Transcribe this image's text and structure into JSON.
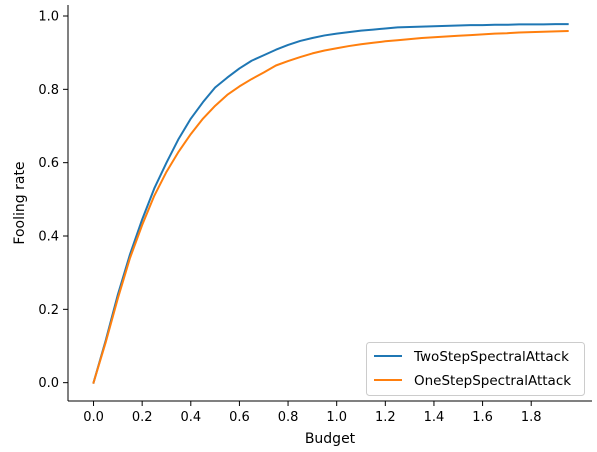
{
  "chart_data": {
    "type": "line",
    "title": "",
    "xlabel": "Budget",
    "ylabel": "Fooling rate",
    "xlim": [
      -0.105,
      2.05
    ],
    "ylim": [
      -0.05,
      1.03
    ],
    "xticks": [
      0.0,
      0.2,
      0.4,
      0.6,
      0.8,
      1.0,
      1.2,
      1.4,
      1.6,
      1.8
    ],
    "xtick_labels": [
      "0.0",
      "0.2",
      "0.4",
      "0.6",
      "0.8",
      "1.0",
      "1.2",
      "1.4",
      "1.6",
      "1.8"
    ],
    "yticks": [
      0.0,
      0.2,
      0.4,
      0.6,
      0.8,
      1.0
    ],
    "ytick_labels": [
      "0.0",
      "0.2",
      "0.4",
      "0.6",
      "0.8",
      "1.0"
    ],
    "grid": false,
    "legend_position": "bottom-right",
    "series": [
      {
        "name": "TwoStepSpectralAttack",
        "color": "#1f77b4",
        "x": [
          0.0,
          0.05,
          0.1,
          0.15,
          0.2,
          0.25,
          0.3,
          0.35,
          0.4,
          0.45,
          0.5,
          0.55,
          0.6,
          0.65,
          0.7,
          0.75,
          0.8,
          0.85,
          0.9,
          0.95,
          1.0,
          1.05,
          1.1,
          1.15,
          1.2,
          1.25,
          1.3,
          1.35,
          1.4,
          1.45,
          1.5,
          1.55,
          1.6,
          1.65,
          1.7,
          1.75,
          1.8,
          1.85,
          1.9,
          1.95
        ],
        "y": [
          0.0,
          0.115,
          0.24,
          0.35,
          0.445,
          0.53,
          0.6,
          0.665,
          0.72,
          0.765,
          0.805,
          0.832,
          0.857,
          0.878,
          0.893,
          0.908,
          0.921,
          0.932,
          0.94,
          0.947,
          0.952,
          0.956,
          0.96,
          0.963,
          0.966,
          0.969,
          0.97,
          0.971,
          0.972,
          0.973,
          0.974,
          0.975,
          0.975,
          0.976,
          0.976,
          0.977,
          0.977,
          0.977,
          0.978,
          0.978
        ]
      },
      {
        "name": "OneStepSpectralAttack",
        "color": "#ff7f0e",
        "x": [
          0.0,
          0.05,
          0.1,
          0.15,
          0.2,
          0.25,
          0.3,
          0.35,
          0.4,
          0.45,
          0.5,
          0.55,
          0.6,
          0.65,
          0.7,
          0.75,
          0.8,
          0.85,
          0.9,
          0.95,
          1.0,
          1.05,
          1.1,
          1.15,
          1.2,
          1.25,
          1.3,
          1.35,
          1.4,
          1.45,
          1.5,
          1.55,
          1.6,
          1.65,
          1.7,
          1.75,
          1.8,
          1.85,
          1.9,
          1.95
        ],
        "y": [
          0.0,
          0.11,
          0.23,
          0.34,
          0.43,
          0.51,
          0.575,
          0.63,
          0.678,
          0.72,
          0.755,
          0.785,
          0.808,
          0.828,
          0.846,
          0.865,
          0.877,
          0.888,
          0.898,
          0.906,
          0.912,
          0.918,
          0.923,
          0.927,
          0.931,
          0.934,
          0.937,
          0.94,
          0.942,
          0.944,
          0.946,
          0.948,
          0.95,
          0.952,
          0.953,
          0.955,
          0.956,
          0.957,
          0.958,
          0.959
        ]
      }
    ]
  }
}
